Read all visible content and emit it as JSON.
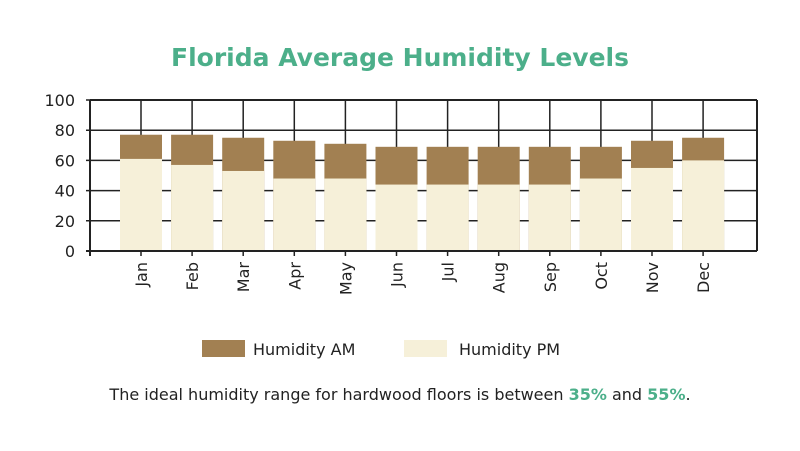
{
  "chart_data": {
    "type": "bar",
    "title": "Florida Average Humidity Levels",
    "xlabel": "",
    "ylabel": "",
    "ylim": [
      0,
      100
    ],
    "yticks": [
      "0",
      "20",
      "40",
      "60",
      "80",
      "100"
    ],
    "grid": true,
    "legend_position": "bottom",
    "categories": [
      "Jan",
      "Feb",
      "Mar",
      "Apr",
      "May",
      "Jun",
      "Jul",
      "Aug",
      "Sep",
      "Oct",
      "Nov",
      "Dec"
    ],
    "series": [
      {
        "name": "Humidity AM",
        "color": "#a28052",
        "values": [
          77,
          77,
          75,
          73,
          71,
          69,
          69,
          69,
          69,
          69,
          73,
          75
        ]
      },
      {
        "name": "Humidity PM",
        "color": "#f6f0d9",
        "values": [
          61,
          57,
          53,
          48,
          48,
          44,
          44,
          44,
          44,
          48,
          55,
          60
        ]
      }
    ]
  },
  "colors": {
    "title": "#4caf8a",
    "highlight": "#4caf8a"
  },
  "footer": {
    "prefix": "The ideal humidity range for hardwood floors is between ",
    "low": "35%",
    "middle": " and ",
    "high": "55%",
    "suffix": "."
  }
}
